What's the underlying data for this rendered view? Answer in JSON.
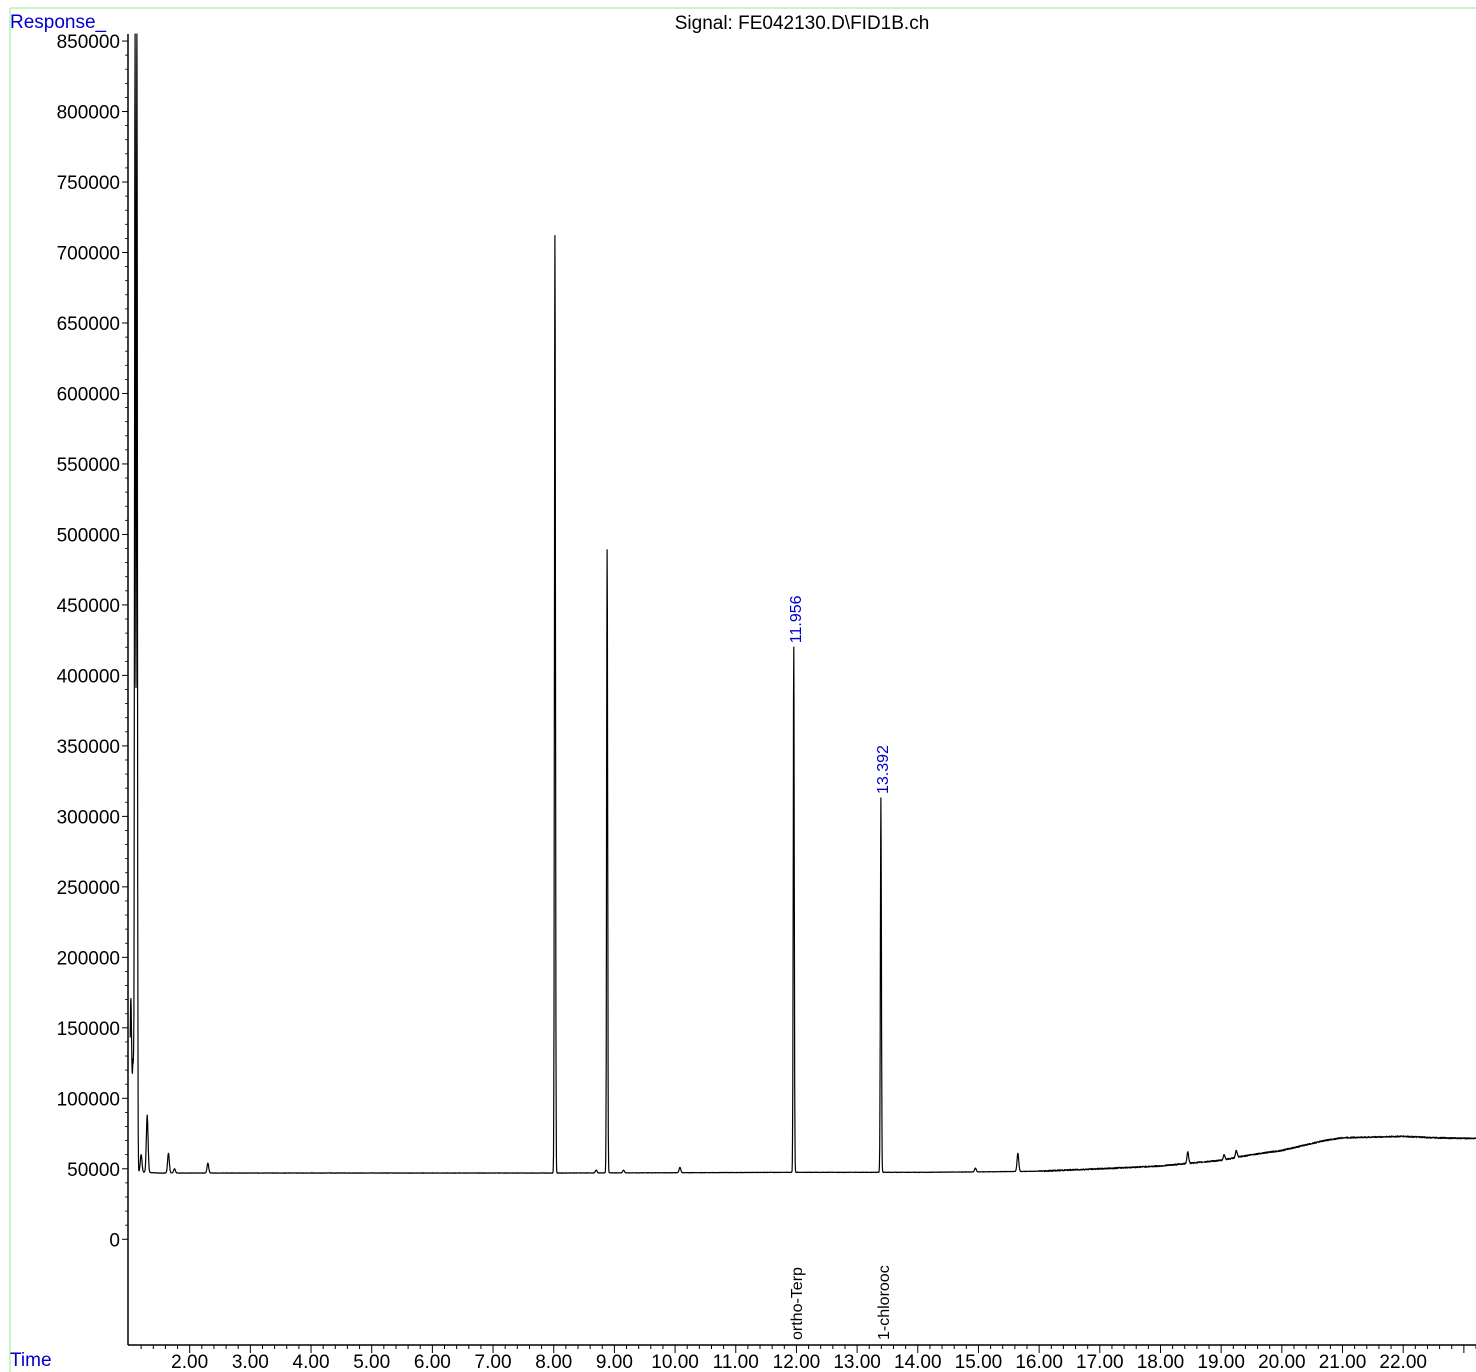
{
  "chart_data": {
    "type": "line",
    "title": "Signal: FE042130.D\\FID1B.ch",
    "ylabel": "Response_",
    "xlabel": "Time",
    "xlim": [
      1.0,
      23.2
    ],
    "ylim": [
      -75000,
      855000
    ],
    "y_ticks": [
      0,
      50000,
      100000,
      150000,
      200000,
      250000,
      300000,
      350000,
      400000,
      450000,
      500000,
      550000,
      600000,
      650000,
      700000,
      750000,
      800000,
      850000
    ],
    "y_tick_labels": [
      "0",
      "50000",
      "100000",
      "150000",
      "200000",
      "250000",
      "300000",
      "350000",
      "400000",
      "450000",
      "500000",
      "550000",
      "600000",
      "650000",
      "700000",
      "750000",
      "800000",
      "850000"
    ],
    "x_ticks": [
      2,
      3,
      4,
      5,
      6,
      7,
      8,
      9,
      10,
      11,
      12,
      13,
      14,
      15,
      16,
      17,
      18,
      19,
      20,
      21,
      22
    ],
    "x_tick_labels": [
      "2.00",
      "3.00",
      "4.00",
      "5.00",
      "6.00",
      "7.00",
      "8.00",
      "9.00",
      "10.00",
      "11.00",
      "12.00",
      "13.00",
      "14.00",
      "15.00",
      "16.00",
      "17.00",
      "18.00",
      "19.00",
      "20.00",
      "21.00",
      "22.00"
    ],
    "baseline": [
      [
        1.05,
        48000
      ],
      [
        1.5,
        47000
      ],
      [
        3,
        47000
      ],
      [
        6,
        47000
      ],
      [
        8,
        47000
      ],
      [
        10,
        47200
      ],
      [
        12,
        47500
      ],
      [
        14,
        47500
      ],
      [
        15,
        47800
      ],
      [
        16,
        48300
      ],
      [
        17,
        50000
      ],
      [
        18,
        52000
      ],
      [
        18.5,
        54000
      ],
      [
        19,
        56000
      ],
      [
        19.5,
        60000
      ],
      [
        20,
        63000
      ],
      [
        20.3,
        66000
      ],
      [
        20.7,
        70000
      ],
      [
        21,
        72000
      ],
      [
        21.5,
        72500
      ],
      [
        22,
        73000
      ],
      [
        22.5,
        72000
      ],
      [
        23.2,
        71500
      ]
    ],
    "peaks": [
      [
        1.03,
        170000
      ],
      [
        1.07,
        125000
      ],
      [
        1.1,
        855000
      ],
      [
        1.13,
        855000
      ],
      [
        1.2,
        60000
      ],
      [
        1.3,
        88000
      ],
      [
        1.65,
        61000
      ],
      [
        1.75,
        50000
      ],
      [
        2.3,
        54000
      ],
      [
        8.02,
        712000
      ],
      [
        8.88,
        489000
      ],
      [
        8.7,
        49000
      ],
      [
        9.15,
        49000
      ],
      [
        10.08,
        51000
      ],
      [
        11.956,
        420000
      ],
      [
        13.392,
        313000
      ],
      [
        14.95,
        50500
      ],
      [
        15.65,
        61000
      ],
      [
        18.45,
        62000
      ],
      [
        19.25,
        63000
      ],
      [
        19.05,
        60000
      ]
    ],
    "annotations": [
      {
        "rt": "11.956",
        "compound": "ortho-Terp",
        "x": 11.956,
        "y": 420000
      },
      {
        "rt": "13.392",
        "compound": "1-chlorooc",
        "x": 13.392,
        "y": 313000
      }
    ],
    "colors": {
      "trace": "#000000",
      "axis_label": "#0000cc",
      "frame": "#90ee90",
      "annotation": "#0000cc"
    }
  }
}
